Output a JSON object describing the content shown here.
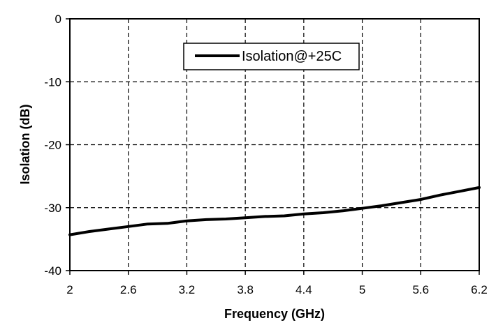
{
  "chart_data": {
    "type": "line",
    "xlabel": "Frequency (GHz)",
    "ylabel": "Isolation (dB)",
    "xlim": [
      2,
      6.2
    ],
    "ylim": [
      -40,
      0
    ],
    "x_ticks": [
      "2",
      "2.6",
      "3.2",
      "3.8",
      "4.4",
      "5",
      "5.6",
      "6.2"
    ],
    "y_ticks": [
      "0",
      "-10",
      "-20",
      "-30",
      "-40"
    ],
    "grid": true,
    "legend_position": "top-center",
    "series": [
      {
        "name": "Isolation@+25C",
        "color": "#000000",
        "x": [
          2.0,
          2.2,
          2.4,
          2.6,
          2.8,
          3.0,
          3.2,
          3.4,
          3.6,
          3.8,
          4.0,
          4.2,
          4.4,
          4.6,
          4.8,
          5.0,
          5.2,
          5.4,
          5.6,
          5.8,
          6.0,
          6.2
        ],
        "y": [
          -34.3,
          -33.8,
          -33.4,
          -33.0,
          -32.6,
          -32.5,
          -32.1,
          -31.9,
          -31.8,
          -31.6,
          -31.4,
          -31.3,
          -31.0,
          -30.8,
          -30.5,
          -30.1,
          -29.7,
          -29.2,
          -28.7,
          -28.0,
          -27.4,
          -26.8
        ]
      }
    ]
  }
}
